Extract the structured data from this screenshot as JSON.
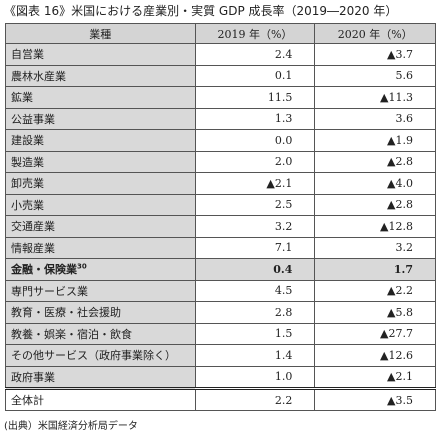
{
  "header": {
    "title": "《図表 16》米国における産業別・実質 GDP 成長率（2019―2020 年）"
  },
  "table": {
    "columns": [
      "業種",
      "2019 年（%）",
      "2020 年（%）"
    ],
    "rows": [
      {
        "name": "自営業",
        "y2019": "2.4",
        "y2020": "▲3.7"
      },
      {
        "name": "農林水産業",
        "y2019": "0.1",
        "y2020": "5.6"
      },
      {
        "name": "鉱業",
        "y2019": "11.5",
        "y2020": "▲11.3"
      },
      {
        "name": "公益事業",
        "y2019": "1.3",
        "y2020": "3.6"
      },
      {
        "name": "建設業",
        "y2019": "0.0",
        "y2020": "▲1.9"
      },
      {
        "name": "製造業",
        "y2019": "2.0",
        "y2020": "▲2.8"
      },
      {
        "name": "卸売業",
        "y2019": "▲2.1",
        "y2020": "▲4.0"
      },
      {
        "name": "小売業",
        "y2019": "2.5",
        "y2020": "▲2.8"
      },
      {
        "name": "交通産業",
        "y2019": "3.2",
        "y2020": "▲12.8"
      },
      {
        "name": "情報産業",
        "y2019": "7.1",
        "y2020": "3.2"
      },
      {
        "name": "金融・保険業",
        "note": "30",
        "y2019": "0.4",
        "y2020": "1.7",
        "highlight": true
      },
      {
        "name": "専門サービス業",
        "y2019": "4.5",
        "y2020": "▲2.2"
      },
      {
        "name": "教育・医療・社会援助",
        "y2019": "2.8",
        "y2020": "▲5.8"
      },
      {
        "name": "教養・娯楽・宿泊・飲食",
        "y2019": "1.5",
        "y2020": "▲27.7"
      },
      {
        "name": "その他サービス（政府事業除く）",
        "y2019": "1.4",
        "y2020": "▲12.6"
      },
      {
        "name": "政府事業",
        "y2019": "1.0",
        "y2020": "▲2.1"
      }
    ],
    "total": {
      "name": "全体計",
      "y2019": "2.2",
      "y2020": "▲3.5"
    }
  },
  "footer": {
    "source": "(出典）米国経済分析局データ"
  }
}
